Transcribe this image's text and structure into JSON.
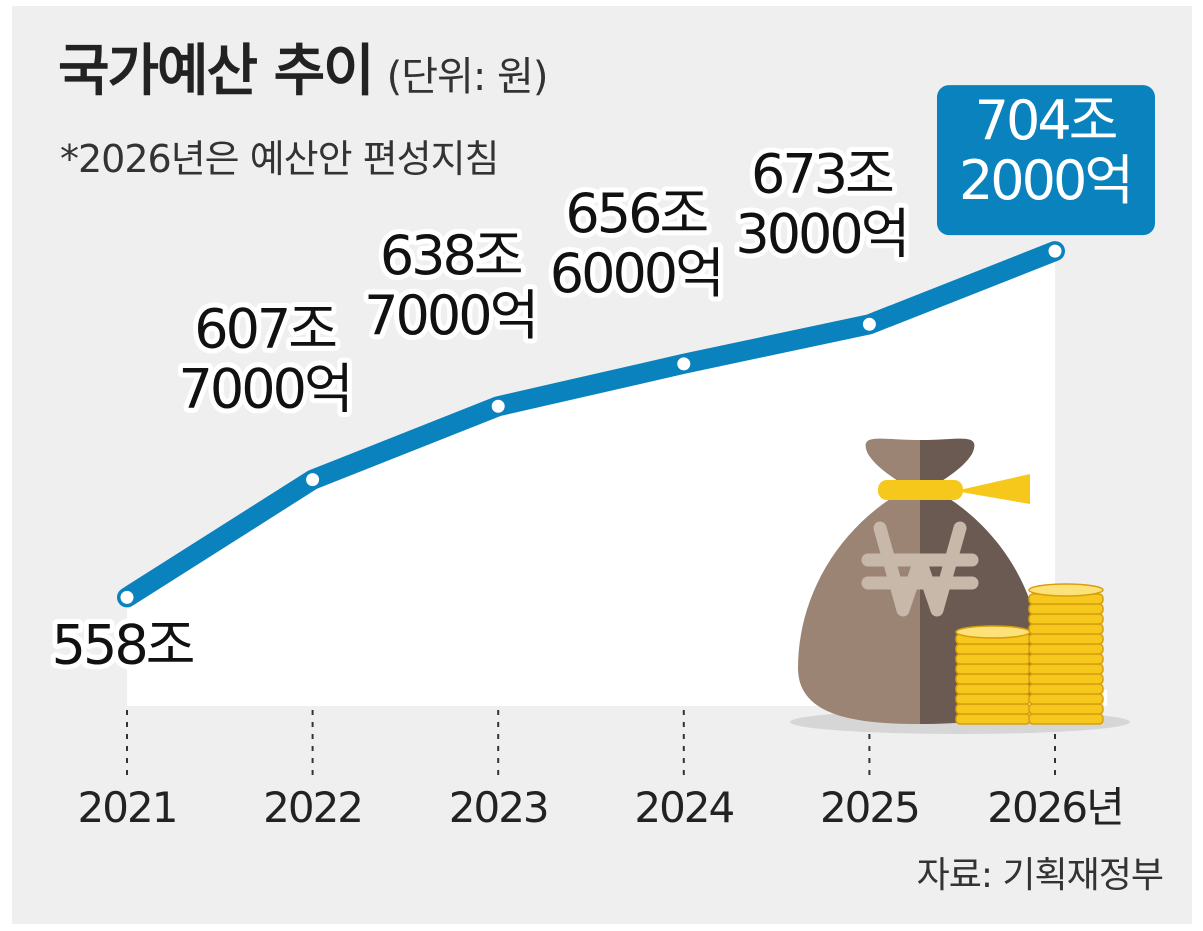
{
  "header": {
    "title": "국가예산 추이",
    "unit": "(단위: 원)",
    "note": "*2026년은 예산안 편성지침"
  },
  "source": "자료: 기획재정부",
  "colors": {
    "line": "#0a82bd",
    "highlight_box": "#0a82bd",
    "background": "#efefef",
    "plot_area": "#ffffff",
    "coin": "#f6c81e",
    "bag_light": "#9b8474",
    "bag_dark": "#6b5a52",
    "bag_tie": "#f7c81c"
  },
  "icons": [
    "money-bag-icon",
    "won-sign-icon",
    "coin-stack-icon"
  ],
  "chart_data": {
    "type": "line",
    "title": "국가예산 추이",
    "unit": "원",
    "x": [
      "2021",
      "2022",
      "2023",
      "2024",
      "2025",
      "2026년"
    ],
    "series": [
      {
        "values": [
          5580000,
          6077000,
          6387000,
          6566000,
          6733000,
          7042000
        ],
        "value_unit": "억원"
      }
    ],
    "data_labels": [
      [
        "558조"
      ],
      [
        "607조",
        "7000억"
      ],
      [
        "638조",
        "7000억"
      ],
      [
        "656조",
        "6000억"
      ],
      [
        "673조",
        "3000억"
      ],
      [
        "704조",
        "2000억"
      ]
    ],
    "highlighted_point": 5,
    "ylim": [
      5400000,
      7300000
    ],
    "grid": false,
    "legend": "none"
  }
}
